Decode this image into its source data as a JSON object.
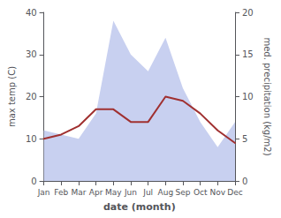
{
  "chart_data": {
    "type": "line",
    "categories": [
      "Jan",
      "Feb",
      "Mar",
      "Apr",
      "May",
      "Jun",
      "Jul",
      "Aug",
      "Sep",
      "Oct",
      "Nov",
      "Dec"
    ],
    "xlabel": "date (month)",
    "ylabel": "max temp (C)",
    "y2label": "med. precipitation (kg/m2)",
    "ylim": [
      0,
      40
    ],
    "yticks": [
      0,
      10,
      20,
      30,
      40
    ],
    "y2lim": [
      0,
      20
    ],
    "y2ticks": [
      0,
      5,
      10,
      15,
      20
    ],
    "grid": false,
    "series": [
      {
        "type": "area",
        "axis": "y2",
        "color": "#c8d0f0",
        "values": [
          6,
          5.5,
          5,
          8,
          19,
          15,
          13,
          17,
          11,
          7,
          4,
          7
        ]
      },
      {
        "type": "line",
        "color": "#a03030",
        "values": [
          10,
          11,
          13,
          17,
          17,
          14,
          14,
          20,
          19,
          16,
          12,
          9
        ]
      }
    ]
  }
}
